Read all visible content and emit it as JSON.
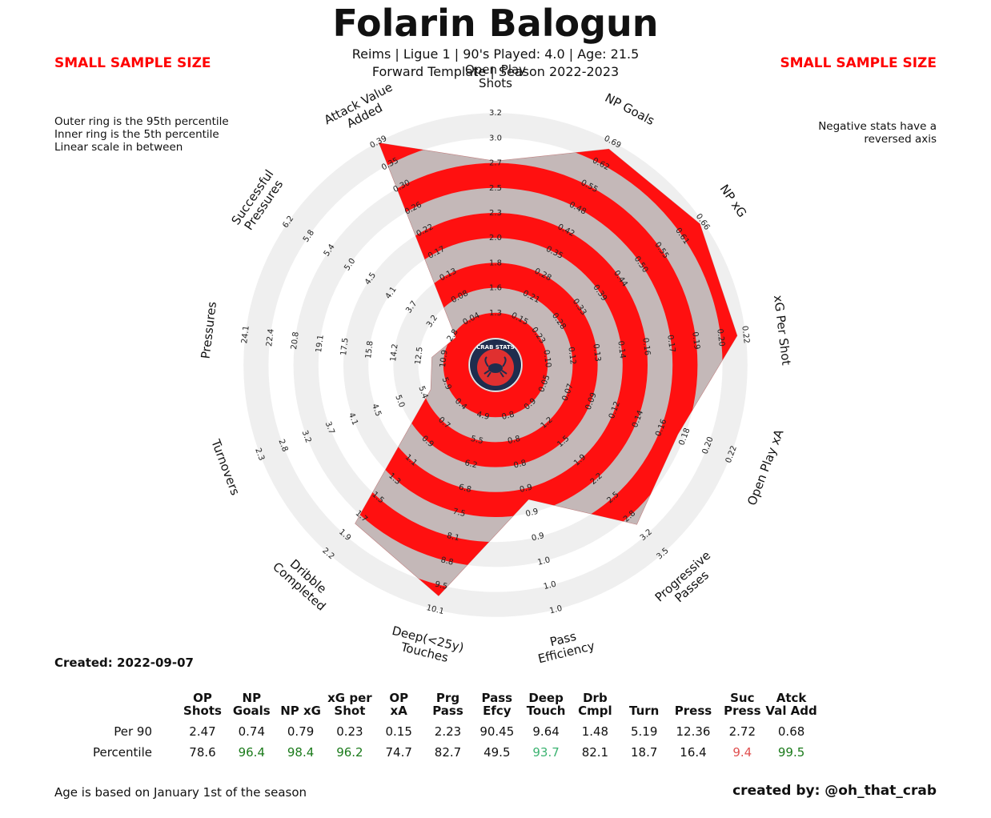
{
  "header": {
    "title": "Folarin Balogun",
    "subtitle1": "Reims  | Ligue 1 | 90's Played: 4.0 | Age: 21.5",
    "subtitle2": "Forward Template | Season 2022-2023",
    "warning_left": "SMALL SAMPLE SIZE",
    "warning_right": "SMALL SAMPLE SIZE"
  },
  "notes": {
    "left_lines": [
      "Outer ring is the 95th percentile",
      "Inner ring is the 5th percentile",
      "Linear scale in between"
    ],
    "right_lines": [
      "Negative stats have a",
      "reversed axis"
    ]
  },
  "logo": {
    "text": "CRAB STATS",
    "icon": "crab-icon"
  },
  "colors": {
    "fill": "#c4b8b8",
    "band": "#ff1010",
    "ring": "#efefef",
    "good": "#1a7a1a",
    "fair": "#3cb371",
    "bad": "#e05050"
  },
  "chart_data": {
    "type": "radar",
    "axes": [
      {
        "label": "Open Play Shots",
        "ticks": [
          "1.3",
          "1.6",
          "1.8",
          "2.0",
          "2.3",
          "2.5",
          "2.7",
          "3.0",
          "3.2"
        ],
        "percentile": 78.6
      },
      {
        "label": "NP Goals",
        "ticks": [
          "0.15",
          "0.21",
          "0.28",
          "0.35",
          "0.42",
          "0.48",
          "0.55",
          "0.62",
          "0.69"
        ],
        "percentile": 96.4
      },
      {
        "label": "NP xG",
        "ticks": [
          "0.23",
          "0.28",
          "0.33",
          "0.39",
          "0.44",
          "0.50",
          "0.55",
          "0.61",
          "0.66"
        ],
        "percentile": 98.4
      },
      {
        "label": "xG Per Shot",
        "ticks": [
          "0.10",
          "0.12",
          "0.13",
          "0.14",
          "0.16",
          "0.17",
          "0.19",
          "0.20",
          "0.22"
        ],
        "percentile": 96.2
      },
      {
        "label": "Open Play xA",
        "ticks": [
          "0.05",
          "0.07",
          "0.09",
          "0.12",
          "0.14",
          "0.16",
          "0.18",
          "0.20",
          "0.22"
        ],
        "percentile": 74.7
      },
      {
        "label": "Progressive Passes",
        "ticks": [
          "0.9",
          "1.2",
          "1.5",
          "1.9",
          "2.2",
          "2.5",
          "2.8",
          "3.2",
          "3.5"
        ],
        "percentile": 82.7
      },
      {
        "label": "Pass Efficiency",
        "ticks": [
          "0.8",
          "0.8",
          "0.8",
          "0.9",
          "0.9",
          "0.9",
          "1.0",
          "1.0",
          "1.0"
        ],
        "percentile": 49.5
      },
      {
        "label": "Deep(<25y) Touches",
        "ticks": [
          "4.9",
          "5.5",
          "6.2",
          "6.8",
          "7.5",
          "8.1",
          "8.8",
          "9.5",
          "10.1"
        ],
        "percentile": 93.7
      },
      {
        "label": "Dribble Completed",
        "ticks": [
          "0.4",
          "0.7",
          "0.9",
          "1.1",
          "1.3",
          "1.5",
          "1.7",
          "1.9",
          "2.2"
        ],
        "percentile": 82.1
      },
      {
        "label": "Turnovers",
        "ticks": [
          "5.9",
          "5.4",
          "5.0",
          "4.5",
          "4.1",
          "3.7",
          "3.2",
          "2.8",
          "2.3"
        ],
        "percentile": 18.7
      },
      {
        "label": "Pressures",
        "ticks": [
          "10.9",
          "12.5",
          "14.2",
          "15.8",
          "17.5",
          "19.1",
          "20.8",
          "22.4",
          "24.1"
        ],
        "percentile": 16.4
      },
      {
        "label": "Successful Pressures",
        "ticks": [
          "2.8",
          "3.2",
          "3.7",
          "4.1",
          "4.5",
          "5.0",
          "5.4",
          "5.8",
          "6.2"
        ],
        "percentile": 9.4
      },
      {
        "label": "Attack Value Added",
        "ticks": [
          "0.04",
          "0.08",
          "0.13",
          "0.17",
          "0.22",
          "0.26",
          "0.30",
          "0.35",
          "0.39"
        ],
        "percentile": 99.5
      }
    ],
    "table": {
      "columns": [
        [
          "OP",
          "Shots"
        ],
        [
          "NP",
          "Goals"
        ],
        [
          "NP xG",
          ""
        ],
        [
          "xG per",
          "Shot"
        ],
        [
          "OP",
          "xA"
        ],
        [
          "Prg",
          "Pass"
        ],
        [
          "Pass",
          "Efcy"
        ],
        [
          "Deep",
          "Touch"
        ],
        [
          "Drb",
          "Cmpl"
        ],
        [
          "Turn",
          ""
        ],
        [
          "Press",
          ""
        ],
        [
          "Suc",
          "Press"
        ],
        [
          "Atck",
          "Val Add"
        ]
      ],
      "row_labels": [
        "Per 90",
        "Percentile"
      ],
      "per90": [
        "2.47",
        "0.74",
        "0.79",
        "0.23",
        "0.15",
        "2.23",
        "90.45",
        "9.64",
        "1.48",
        "5.19",
        "12.36",
        "2.72",
        "0.68"
      ],
      "percentile": [
        "78.6",
        "96.4",
        "98.4",
        "96.2",
        "74.7",
        "82.7",
        "49.5",
        "93.7",
        "82.1",
        "18.7",
        "16.4",
        "9.4",
        "99.5"
      ]
    }
  },
  "footer": {
    "created": "Created: 2022-09-07",
    "age_note": "Age is based on January 1st of the season",
    "credit": "created by: @oh_that_crab"
  }
}
